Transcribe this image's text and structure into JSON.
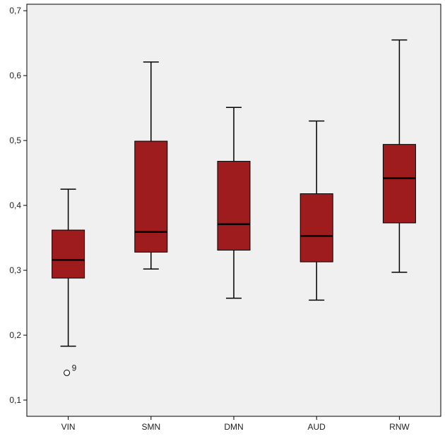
{
  "chart_data": {
    "type": "boxplot",
    "title": "",
    "xlabel": "",
    "ylabel": "",
    "categories": [
      "VIN",
      "SMN",
      "DMN",
      "AUD",
      "RNW"
    ],
    "ylim": [
      0.075,
      0.71
    ],
    "yticks": [
      0.1,
      0.2,
      0.3,
      0.4,
      0.5,
      0.6,
      0.7
    ],
    "ytick_labels": [
      "0,1",
      "0,2",
      "0,3",
      "0,4",
      "0,5",
      "0,6",
      "0,7"
    ],
    "grid": false,
    "boxes": [
      {
        "category": "VIN",
        "whisker_low": 0.183,
        "q1": 0.288,
        "median": 0.316,
        "q3": 0.362,
        "whisker_high": 0.425
      },
      {
        "category": "SMN",
        "whisker_low": 0.302,
        "q1": 0.328,
        "median": 0.359,
        "q3": 0.499,
        "whisker_high": 0.621
      },
      {
        "category": "DMN",
        "whisker_low": 0.257,
        "q1": 0.331,
        "median": 0.371,
        "q3": 0.468,
        "whisker_high": 0.551
      },
      {
        "category": "AUD",
        "whisker_low": 0.254,
        "q1": 0.313,
        "median": 0.353,
        "q3": 0.418,
        "whisker_high": 0.53
      },
      {
        "category": "RNW",
        "whisker_low": 0.297,
        "q1": 0.373,
        "median": 0.442,
        "q3": 0.494,
        "whisker_high": 0.655
      }
    ],
    "outliers": [
      {
        "category": "VIN",
        "value": 0.142,
        "label": "9"
      }
    ],
    "colors": {
      "box_fill": "#9E1B1E",
      "stroke": "#000000",
      "plot_background": "#F0F0F0",
      "page_background": "#FFFFFF"
    }
  }
}
